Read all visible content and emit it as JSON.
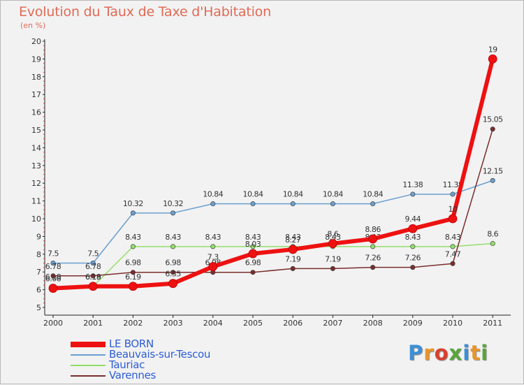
{
  "title": "Evolution du Taux de Taxe d'Habitation",
  "unit_label": "(en %)",
  "brand": {
    "letters": [
      {
        "ch": "P",
        "color": "#3d8fd6"
      },
      {
        "ch": "r",
        "color": "#e8952c"
      },
      {
        "ch": "o",
        "color": "#d8412f"
      },
      {
        "ch": "x",
        "color": "#5aa53a"
      },
      {
        "ch": "i",
        "color": "#3d8fd6"
      },
      {
        "ch": "t",
        "color": "#e8952c"
      },
      {
        "ch": "i",
        "color": "#5aa53a"
      }
    ]
  },
  "chart_data": {
    "type": "line",
    "x": [
      "2000",
      "2001",
      "2002",
      "2003",
      "2004",
      "2005",
      "2006",
      "2007",
      "2008",
      "2009",
      "2010",
      "2011"
    ],
    "ylim": [
      5,
      20
    ],
    "yticks": [
      5,
      6,
      7,
      8,
      9,
      10,
      11,
      12,
      13,
      14,
      15,
      16,
      17,
      18,
      19,
      20
    ],
    "grid": false,
    "legend_position": "bottom-left",
    "series": [
      {
        "name": "Beauvais-sur-Tescou",
        "color": "#6a9fd0",
        "values": [
          7.5,
          7.5,
          10.32,
          10.32,
          10.84,
          10.84,
          10.84,
          10.84,
          10.84,
          11.38,
          11.38,
          12.15
        ],
        "labels": [
          "7.5",
          "7.5",
          "10.32",
          "10.32",
          "10.84",
          "10.84",
          "10.84",
          "10.84",
          "10.84",
          "11.38",
          "11.38",
          "12.15"
        ]
      },
      {
        "name": "Tauriac",
        "color": "#92df6a",
        "values": [
          6.18,
          6.18,
          8.43,
          8.43,
          8.43,
          8.43,
          8.43,
          8.43,
          8.43,
          8.43,
          8.43,
          8.6
        ],
        "labels": [
          "6.18",
          "6.18",
          "8.43",
          "8.43",
          "8.43",
          "8.43",
          "8.43",
          "8.43",
          "8.43",
          "8.43",
          "8.43",
          "8.6"
        ]
      },
      {
        "name": "Varennes",
        "color": "#7a2e2e",
        "values": [
          6.78,
          6.78,
          6.98,
          6.98,
          6.98,
          6.98,
          7.19,
          7.19,
          7.26,
          7.26,
          7.47,
          15.05
        ],
        "labels": [
          "6.78",
          "6.78",
          "6.98",
          "6.98",
          "6.98",
          "6.98",
          "7.19",
          "7.19",
          "7.26",
          "7.26",
          "7.47",
          "15.05"
        ]
      },
      {
        "name": "LE BORN",
        "color": "#ee1111",
        "values": [
          6.08,
          6.19,
          6.19,
          6.35,
          7.3,
          8.03,
          8.27,
          8.6,
          8.86,
          9.44,
          10,
          19
        ],
        "labels": [
          "6.08",
          "6.19",
          "6.19",
          "6.35",
          "7.3",
          "8.03",
          "8.27",
          "8.6",
          "8.86",
          "9.44",
          "10",
          "19"
        ]
      }
    ]
  },
  "legend": [
    {
      "name": "LE BORN",
      "color": "#ee1111"
    },
    {
      "name": "Beauvais-sur-Tescou",
      "color": "#6a9fd0"
    },
    {
      "name": "Tauriac",
      "color": "#92df6a"
    },
    {
      "name": "Varennes",
      "color": "#7a2e2e"
    }
  ]
}
